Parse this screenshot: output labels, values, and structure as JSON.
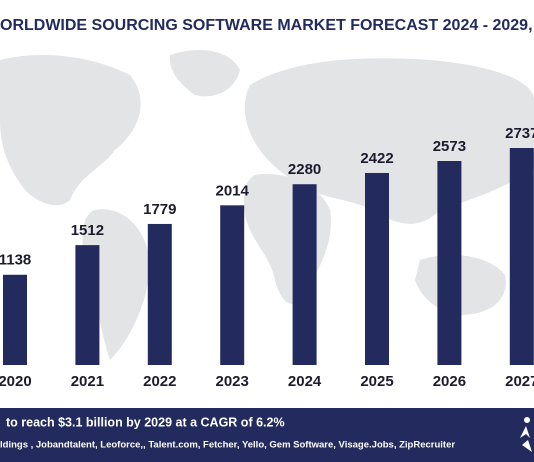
{
  "chart_data": {
    "type": "bar",
    "title": "ORLDWIDE SOURCING SOFTWARE MARKET FORECAST 2024 - 2029,",
    "categories": [
      "2020",
      "2021",
      "2022",
      "2023",
      "2024",
      "2025",
      "2026",
      "2027"
    ],
    "values": [
      1138,
      1512,
      1779,
      2014,
      2280,
      2422,
      2573,
      2737
    ],
    "color": "#232b5e",
    "footer": {
      "summary": "to reach $3.1 billion by 2029 at a CAGR of 6.2%",
      "players": "ldings , Jobandtalent, Leoforce,, Talent.com, Fetcher, Yello, Gem Software, Visage.Jobs, ZipRecruiter"
    }
  }
}
